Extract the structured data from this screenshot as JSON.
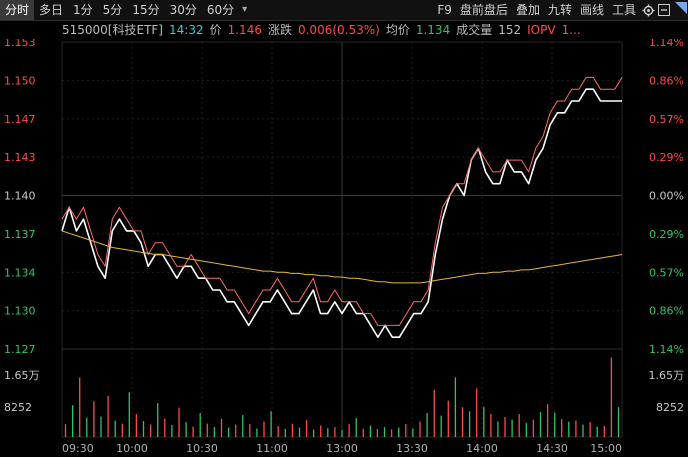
{
  "tabs": [
    {
      "label": "分时",
      "active": true
    },
    {
      "label": "多日"
    },
    {
      "label": "1分"
    },
    {
      "label": "5分"
    },
    {
      "label": "15分"
    },
    {
      "label": "30分"
    },
    {
      "label": "60分"
    }
  ],
  "tab_more": "▾",
  "toolbar": {
    "f9": "F9",
    "pre_post": "盘前盘后",
    "overlay": "叠加",
    "nine_turn": "九转",
    "draw_line": "画线",
    "tools": "工具"
  },
  "info": {
    "name": "515000[科技ETF]",
    "time": "14:32",
    "price_label": "价",
    "price": "1.146",
    "change_label": "涨跌",
    "change": "0.006(0.53%)",
    "avg_label": "均价",
    "avg": "1.134",
    "volume_label": "成交量",
    "volume": "152",
    "iopv_label": "IOPV",
    "iopv": "1..."
  },
  "chart_data": {
    "type": "line",
    "prev_close": 1.14,
    "y_left_ticks": [
      "1.153",
      "1.150",
      "1.147",
      "1.143",
      "1.140",
      "1.137",
      "1.134",
      "1.130",
      "1.127"
    ],
    "y_right_ticks": [
      "1.14%",
      "0.86%",
      "0.57%",
      "0.29%",
      "0.00%",
      "0.29%",
      "0.57%",
      "0.86%",
      "1.14%"
    ],
    "x_ticks": [
      "09:30",
      "10:00",
      "10:30",
      "11:00",
      "13:00",
      "13:30",
      "14:00",
      "14:30",
      "15:00"
    ],
    "ylim": [
      1.127,
      1.153
    ],
    "series": [
      {
        "name": "价格",
        "color": "#ffffff",
        "values": [
          1.137,
          1.139,
          1.137,
          1.138,
          1.136,
          1.134,
          1.133,
          1.137,
          1.138,
          1.137,
          1.137,
          1.136,
          1.134,
          1.135,
          1.135,
          1.134,
          1.133,
          1.134,
          1.134,
          1.133,
          1.133,
          1.132,
          1.132,
          1.131,
          1.131,
          1.13,
          1.129,
          1.13,
          1.131,
          1.131,
          1.132,
          1.131,
          1.13,
          1.13,
          1.131,
          1.132,
          1.13,
          1.13,
          1.131,
          1.13,
          1.131,
          1.13,
          1.13,
          1.129,
          1.128,
          1.129,
          1.128,
          1.128,
          1.129,
          1.13,
          1.13,
          1.131,
          1.135,
          1.138,
          1.14,
          1.141,
          1.14,
          1.143,
          1.144,
          1.142,
          1.141,
          1.141,
          1.143,
          1.142,
          1.142,
          1.141,
          1.143,
          1.144,
          1.146,
          1.147,
          1.147,
          1.148,
          1.148,
          1.149,
          1.149,
          1.148,
          1.148,
          1.148,
          1.148
        ]
      },
      {
        "name": "IOPV",
        "color": "#ff6a6a",
        "values": [
          1.138,
          1.139,
          1.138,
          1.139,
          1.137,
          1.135,
          1.134,
          1.138,
          1.139,
          1.138,
          1.137,
          1.137,
          1.135,
          1.136,
          1.136,
          1.135,
          1.134,
          1.134,
          1.135,
          1.134,
          1.133,
          1.133,
          1.133,
          1.132,
          1.132,
          1.131,
          1.13,
          1.131,
          1.132,
          1.132,
          1.133,
          1.132,
          1.131,
          1.131,
          1.132,
          1.133,
          1.131,
          1.131,
          1.132,
          1.131,
          1.131,
          1.131,
          1.13,
          1.13,
          1.129,
          1.129,
          1.129,
          1.129,
          1.13,
          1.131,
          1.131,
          1.132,
          1.136,
          1.139,
          1.14,
          1.141,
          1.141,
          1.143,
          1.144,
          1.143,
          1.142,
          1.142,
          1.143,
          1.143,
          1.143,
          1.142,
          1.144,
          1.145,
          1.147,
          1.148,
          1.148,
          1.149,
          1.149,
          1.15,
          1.15,
          1.149,
          1.149,
          1.149,
          1.15
        ]
      },
      {
        "name": "均价",
        "color": "#e6b830",
        "values": [
          1.137,
          1.1368,
          1.1366,
          1.1364,
          1.1362,
          1.136,
          1.1358,
          1.1356,
          1.1355,
          1.1354,
          1.1353,
          1.1352,
          1.1351,
          1.135,
          1.135,
          1.1349,
          1.1348,
          1.1347,
          1.1346,
          1.1345,
          1.1344,
          1.1343,
          1.1342,
          1.1341,
          1.134,
          1.1339,
          1.1338,
          1.1337,
          1.1336,
          1.1336,
          1.1335,
          1.1335,
          1.1334,
          1.1334,
          1.1333,
          1.1333,
          1.1332,
          1.1332,
          1.1331,
          1.1331,
          1.133,
          1.133,
          1.1329,
          1.1328,
          1.1327,
          1.1327,
          1.1326,
          1.1326,
          1.1326,
          1.1326,
          1.1326,
          1.1327,
          1.1328,
          1.1329,
          1.133,
          1.1331,
          1.1332,
          1.1333,
          1.1334,
          1.1334,
          1.1335,
          1.1335,
          1.1336,
          1.1336,
          1.1337,
          1.1337,
          1.1338,
          1.1339,
          1.134,
          1.1341,
          1.1342,
          1.1343,
          1.1344,
          1.1345,
          1.1346,
          1.1347,
          1.1348,
          1.1349,
          1.135
        ]
      }
    ],
    "volume_ticks": [
      "1.65万",
      "8252"
    ],
    "volume_max": 16500,
    "volumes": [
      2600,
      6400,
      12000,
      3900,
      7200,
      4100,
      8300,
      3300,
      2700,
      9000,
      4600,
      3200,
      2500,
      6800,
      3700,
      2400,
      5900,
      3000,
      2100,
      4800,
      2700,
      2000,
      3700,
      1900,
      2500,
      4400,
      2600,
      1700,
      3100,
      5200,
      2200,
      1600,
      2700,
      1900,
      3400,
      1500,
      2300,
      1800,
      2000,
      1400,
      2600,
      3800,
      1700,
      2300,
      1600,
      2000,
      1500,
      1900,
      2600,
      1700,
      3100,
      4800,
      9500,
      4300,
      7300,
      12000,
      6000,
      5200,
      9800,
      6100,
      4600,
      3100,
      4000,
      3500,
      4600,
      2800,
      3500,
      5000,
      6600,
      4900,
      3600,
      3100,
      3300,
      2500,
      3000,
      2100,
      2200,
      16000,
      6000
    ],
    "volume_colors": [
      "up",
      "down",
      "up",
      "down",
      "up",
      "down",
      "up",
      "down",
      "up",
      "down",
      "up",
      "down",
      "up",
      "down",
      "up",
      "down",
      "up",
      "down",
      "up",
      "down",
      "up",
      "down",
      "up",
      "down",
      "up",
      "down",
      "up",
      "down",
      "up",
      "down",
      "up",
      "down",
      "up",
      "down",
      "up",
      "down",
      "up",
      "down",
      "up",
      "down",
      "up",
      "down",
      "up",
      "down",
      "up",
      "down",
      "up",
      "down",
      "up",
      "down",
      "up",
      "down",
      "up",
      "down",
      "up",
      "down",
      "up",
      "down",
      "up",
      "down",
      "up",
      "down",
      "up",
      "down",
      "up",
      "down",
      "up",
      "down",
      "up",
      "down",
      "up",
      "down",
      "up",
      "down",
      "up",
      "down",
      "up",
      "up",
      "down"
    ]
  }
}
